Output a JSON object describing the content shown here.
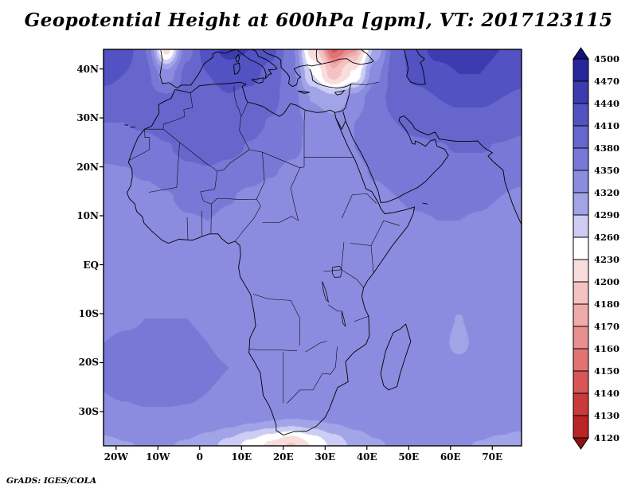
{
  "title": "Geopotential Height at 600hPa [gpm], VT: 2017123115",
  "footer": "GrADS: IGES/COLA",
  "chart_data": {
    "type": "heatmap",
    "subtype": "filled-contour-latlon-map",
    "title": "Geopotential Height at 600hPa [gpm], VT: 2017123115",
    "variable": "Geopotential Height",
    "level": "600hPa",
    "units": "gpm",
    "valid_time": "2017123115",
    "lon_range": [
      -23,
      77
    ],
    "lat_range": [
      -37,
      44
    ],
    "x_ticks": [
      {
        "label": "20W",
        "lon": -20
      },
      {
        "label": "10W",
        "lon": -10
      },
      {
        "label": "0",
        "lon": 0
      },
      {
        "label": "10E",
        "lon": 10
      },
      {
        "label": "20E",
        "lon": 20
      },
      {
        "label": "30E",
        "lon": 30
      },
      {
        "label": "40E",
        "lon": 40
      },
      {
        "label": "50E",
        "lon": 50
      },
      {
        "label": "60E",
        "lon": 60
      },
      {
        "label": "70E",
        "lon": 70
      }
    ],
    "y_ticks": [
      {
        "label": "40N",
        "lat": 40
      },
      {
        "label": "30N",
        "lat": 30
      },
      {
        "label": "20N",
        "lat": 20
      },
      {
        "label": "10N",
        "lat": 10
      },
      {
        "label": "EQ",
        "lat": 0
      },
      {
        "label": "10S",
        "lat": -10
      },
      {
        "label": "20S",
        "lat": -20
      },
      {
        "label": "30S",
        "lat": -30
      }
    ],
    "colorbar": {
      "orientation": "vertical",
      "position": "right",
      "boundary_labels": [
        "4500",
        "4470",
        "4440",
        "4410",
        "4380",
        "4350",
        "4320",
        "4290",
        "4260",
        "4230",
        "4200",
        "4180",
        "4170",
        "4160",
        "4150",
        "4140",
        "4130",
        "4120"
      ],
      "colors_high_to_low": [
        "#12127a",
        "#26269a",
        "#3c3cb0",
        "#5252c2",
        "#6666cd",
        "#7878d6",
        "#8b8bdf",
        "#a2a4e8",
        "#ccccf4",
        "#ffffff",
        "#f9dcdc",
        "#f4c2c2",
        "#efaaaa",
        "#e98f8f",
        "#e17373",
        "#d75656",
        "#ca3a3a",
        "#bb2424",
        "#8e1212"
      ]
    },
    "features": [
      "Closed low (red shading, minimum below 4150 gpm) over Anatolia / eastern Mediterranean near 30-34E on the northern edge",
      "Small pink low on the northern edge near 8W",
      "Dark blue high band (>4440 gpm) along the northern edge, strongest at the NE and NW corners",
      "Light low tongue (white/pink, ~4200-4260 gpm) on the southern edge near 15-30E",
      "Weak light anomaly (~4300-4320 gpm) near 62E, 14S over the Indian Ocean",
      "Broad 4320-4350 gpm field over most of Africa"
    ],
    "grid": {
      "note": "Coarse field (gpm) estimated from the shaded analysis; rows ordered north to south",
      "lons": [
        -23,
        -18,
        -13,
        -8,
        -3,
        2,
        7,
        12,
        17,
        22,
        27,
        32,
        37,
        42,
        47,
        52,
        57,
        62,
        67,
        72,
        77
      ],
      "lats": [
        44,
        39,
        34,
        29,
        24,
        19,
        14,
        9,
        4,
        -1,
        -6,
        -11,
        -16,
        -21,
        -26,
        -31,
        -37
      ],
      "values": [
        [
          4440,
          4430,
          4380,
          4215,
          4370,
          4430,
          4450,
          4440,
          4420,
          4360,
          4210,
          4148,
          4168,
          4300,
          4400,
          4430,
          4450,
          4455,
          4450,
          4440,
          4430
        ],
        [
          4420,
          4410,
          4390,
          4330,
          4390,
          4410,
          4425,
          4420,
          4400,
          4360,
          4260,
          4185,
          4235,
          4340,
          4400,
          4420,
          4430,
          4440,
          4440,
          4430,
          4420
        ],
        [
          4400,
          4395,
          4390,
          4385,
          4395,
          4400,
          4408,
          4400,
          4390,
          4362,
          4318,
          4298,
          4330,
          4370,
          4390,
          4400,
          4410,
          4415,
          4415,
          4410,
          4405
        ],
        [
          4380,
          4380,
          4385,
          4392,
          4400,
          4406,
          4400,
          4390,
          4378,
          4360,
          4342,
          4330,
          4350,
          4370,
          4380,
          4390,
          4396,
          4400,
          4400,
          4396,
          4390
        ],
        [
          4364,
          4365,
          4370,
          4378,
          4388,
          4392,
          4388,
          4378,
          4368,
          4355,
          4344,
          4340,
          4350,
          4360,
          4368,
          4374,
          4378,
          4382,
          4382,
          4378,
          4372
        ],
        [
          4345,
          4348,
          4355,
          4365,
          4375,
          4378,
          4372,
          4362,
          4352,
          4345,
          4340,
          4340,
          4345,
          4352,
          4358,
          4362,
          4366,
          4368,
          4368,
          4364,
          4358
        ],
        [
          4328,
          4332,
          4338,
          4348,
          4356,
          4358,
          4352,
          4344,
          4338,
          4334,
          4334,
          4336,
          4340,
          4345,
          4350,
          4354,
          4356,
          4356,
          4354,
          4350,
          4346
        ],
        [
          4330,
          4332,
          4336,
          4342,
          4348,
          4350,
          4345,
          4338,
          4334,
          4332,
          4332,
          4334,
          4338,
          4342,
          4346,
          4348,
          4350,
          4350,
          4348,
          4344,
          4340
        ],
        [
          4334,
          4336,
          4338,
          4342,
          4346,
          4346,
          4342,
          4336,
          4332,
          4330,
          4330,
          4332,
          4336,
          4340,
          4344,
          4346,
          4346,
          4346,
          4344,
          4340,
          4336
        ],
        [
          4338,
          4340,
          4342,
          4344,
          4346,
          4346,
          4342,
          4336,
          4332,
          4330,
          4330,
          4330,
          4334,
          4340,
          4344,
          4346,
          4346,
          4344,
          4342,
          4338,
          4336
        ],
        [
          4342,
          4344,
          4346,
          4348,
          4348,
          4346,
          4342,
          4338,
          4334,
          4332,
          4330,
          4332,
          4336,
          4342,
          4346,
          4348,
          4346,
          4344,
          4340,
          4338,
          4336
        ],
        [
          4346,
          4348,
          4350,
          4350,
          4350,
          4348,
          4344,
          4340,
          4336,
          4334,
          4334,
          4336,
          4340,
          4344,
          4348,
          4346,
          4340,
          4318,
          4336,
          4340,
          4340
        ],
        [
          4350,
          4352,
          4352,
          4352,
          4352,
          4350,
          4346,
          4342,
          4340,
          4338,
          4338,
          4340,
          4342,
          4346,
          4348,
          4344,
          4336,
          4308,
          4334,
          4340,
          4342
        ],
        [
          4352,
          4354,
          4354,
          4354,
          4354,
          4352,
          4350,
          4346,
          4344,
          4342,
          4342,
          4344,
          4346,
          4348,
          4348,
          4346,
          4342,
          4334,
          4340,
          4344,
          4346
        ],
        [
          4350,
          4352,
          4354,
          4354,
          4352,
          4350,
          4348,
          4346,
          4344,
          4344,
          4344,
          4346,
          4346,
          4346,
          4346,
          4346,
          4344,
          4342,
          4344,
          4346,
          4346
        ],
        [
          4344,
          4346,
          4348,
          4348,
          4348,
          4346,
          4340,
          4332,
          4326,
          4322,
          4324,
          4330,
          4336,
          4340,
          4342,
          4344,
          4344,
          4342,
          4342,
          4342,
          4340
        ],
        [
          4310,
          4318,
          4322,
          4322,
          4316,
          4300,
          4278,
          4250,
          4222,
          4196,
          4232,
          4268,
          4298,
          4316,
          4324,
          4328,
          4328,
          4324,
          4318,
          4310,
          4300
        ]
      ]
    }
  }
}
